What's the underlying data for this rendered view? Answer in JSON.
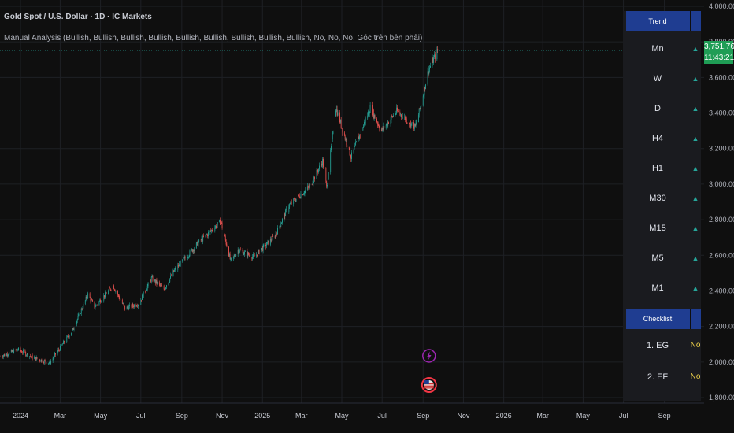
{
  "header": {
    "title": "Gold Spot / U.S. Dollar · 1D · IC Markets",
    "indicator": "Manual Analysis (Bullish, Bullish, Bullish, Bullish, Bullish, Bullish, Bullish, Bullish, Bullish, No, No, No, Góc trên bên phải)"
  },
  "price_tag": {
    "value": "3,751.76",
    "time": "11:43:21"
  },
  "panel": {
    "trend_header": "Trend",
    "trend_rows": [
      {
        "label": "Mn",
        "arrow": "▲"
      },
      {
        "label": "W",
        "arrow": "▲"
      },
      {
        "label": "D",
        "arrow": "▲"
      },
      {
        "label": "H4",
        "arrow": "▲"
      },
      {
        "label": "H1",
        "arrow": "▲"
      },
      {
        "label": "M30",
        "arrow": "▲"
      },
      {
        "label": "M15",
        "arrow": "▲"
      },
      {
        "label": "M5",
        "arrow": "▲"
      },
      {
        "label": "M1",
        "arrow": "▲"
      }
    ],
    "checklist_header": "Checklist",
    "checklist_rows": [
      {
        "label": "1. EG",
        "value": "No"
      },
      {
        "label": "2. EF",
        "value": "No"
      }
    ]
  },
  "colors": {
    "background": "#0f0f0f",
    "up_candle": "#26a69a",
    "down_candle": "#ef5350",
    "price_line": "#26a69a",
    "panel_header": "#1f3d91",
    "event_lightning": "#9c27b0",
    "event_flag": "#f23645"
  },
  "events": [
    {
      "icon": "lightning-icon",
      "date": "2025-09-10"
    },
    {
      "icon": "us-flag-icon",
      "date": "2025-09-10"
    }
  ],
  "chart_data": {
    "type": "candlestick",
    "title": "Gold Spot / U.S. Dollar",
    "interval": "1D",
    "x_ticks": [
      "2024",
      "Mar",
      "May",
      "Jul",
      "Sep",
      "Nov",
      "2025",
      "Mar",
      "May",
      "Jul",
      "Sep",
      "Nov",
      "2026",
      "Mar",
      "May",
      "Jul",
      "Sep"
    ],
    "x_range": [
      "2023-12-01",
      "2026-10-31"
    ],
    "y_ticks": [
      "1,800.00",
      "2,000.00",
      "2,200.00",
      "2,400.00",
      "2,600.00",
      "2,800.00",
      "3,000.00",
      "3,200.00",
      "3,400.00",
      "3,600.00",
      "3,800.00",
      "4,000.00"
    ],
    "y_range": [
      1800,
      4000
    ],
    "last_price": 3751.76,
    "grid": true,
    "trend_points": [
      {
        "date": "2023-12-01",
        "price": 2030
      },
      {
        "date": "2023-12-28",
        "price": 2070
      },
      {
        "date": "2024-01-20",
        "price": 2025
      },
      {
        "date": "2024-02-14",
        "price": 1995
      },
      {
        "date": "2024-03-01",
        "price": 2080
      },
      {
        "date": "2024-03-20",
        "price": 2180
      },
      {
        "date": "2024-04-12",
        "price": 2380
      },
      {
        "date": "2024-04-22",
        "price": 2310
      },
      {
        "date": "2024-05-20",
        "price": 2430
      },
      {
        "date": "2024-06-07",
        "price": 2300
      },
      {
        "date": "2024-06-28",
        "price": 2330
      },
      {
        "date": "2024-07-17",
        "price": 2470
      },
      {
        "date": "2024-08-05",
        "price": 2410
      },
      {
        "date": "2024-08-20",
        "price": 2510
      },
      {
        "date": "2024-09-26",
        "price": 2670
      },
      {
        "date": "2024-10-30",
        "price": 2790
      },
      {
        "date": "2024-11-14",
        "price": 2565
      },
      {
        "date": "2024-11-25",
        "price": 2630
      },
      {
        "date": "2024-12-19",
        "price": 2590
      },
      {
        "date": "2025-01-20",
        "price": 2710
      },
      {
        "date": "2025-02-10",
        "price": 2880
      },
      {
        "date": "2025-03-14",
        "price": 2990
      },
      {
        "date": "2025-04-02",
        "price": 3130
      },
      {
        "date": "2025-04-08",
        "price": 2980
      },
      {
        "date": "2025-04-22",
        "price": 3430
      },
      {
        "date": "2025-05-15",
        "price": 3150
      },
      {
        "date": "2025-06-13",
        "price": 3430
      },
      {
        "date": "2025-06-30",
        "price": 3300
      },
      {
        "date": "2025-07-23",
        "price": 3410
      },
      {
        "date": "2025-08-20",
        "price": 3320
      },
      {
        "date": "2025-08-29",
        "price": 3450
      },
      {
        "date": "2025-09-09",
        "price": 3640
      },
      {
        "date": "2025-09-23",
        "price": 3751.76
      }
    ]
  }
}
